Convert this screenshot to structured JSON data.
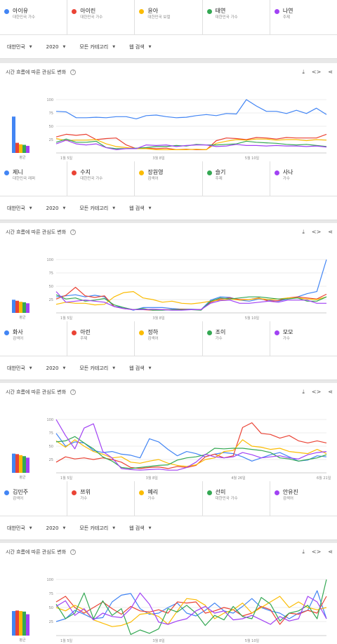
{
  "filters": {
    "region": "대한민국",
    "year": "2020",
    "category": "모든 카테고리",
    "search_type": "웹 검색"
  },
  "card_title": "시간 흐름에 따른 관심도 변화",
  "avg_label": "평균",
  "colors": [
    "#4285f4",
    "#ea4335",
    "#fbbc04",
    "#34a853",
    "#a142f4"
  ],
  "sections": [
    {
      "terms": [
        {
          "name": "아이유",
          "sub": "대한민국 가수"
        },
        {
          "name": "아이린",
          "sub": "대한민국 가수"
        },
        {
          "name": "윤아",
          "sub": "대한민국 보컬"
        },
        {
          "name": "태연",
          "sub": "대한민국 가수"
        },
        {
          "name": "나연",
          "sub": "주제"
        }
      ]
    },
    {
      "terms": [
        {
          "name": "제니",
          "sub": "대한민국 래퍼"
        },
        {
          "name": "수지",
          "sub": "대한민국 가수"
        },
        {
          "name": "장원영",
          "sub": "검색어"
        },
        {
          "name": "슬기",
          "sub": "주제"
        },
        {
          "name": "사나",
          "sub": "가수"
        }
      ]
    },
    {
      "terms": [
        {
          "name": "화사",
          "sub": "검색어"
        },
        {
          "name": "아린",
          "sub": "주제"
        },
        {
          "name": "정하",
          "sub": "검색어"
        },
        {
          "name": "조이",
          "sub": "가수"
        },
        {
          "name": "모모",
          "sub": "가수"
        }
      ]
    },
    {
      "terms": [
        {
          "name": "김민주",
          "sub": "검색어"
        },
        {
          "name": "쯔위",
          "sub": "가수"
        },
        {
          "name": "예리",
          "sub": "가수"
        },
        {
          "name": "선미",
          "sub": "대한민국 가수"
        },
        {
          "name": "안유진",
          "sub": "검색어"
        }
      ]
    }
  ],
  "chart_data": [
    {
      "type": "line",
      "yticks": [
        25,
        50,
        75,
        100
      ],
      "ylim": [
        0,
        100
      ],
      "xticks": [
        "1월 5일",
        "3월 8일",
        "5월 10일"
      ],
      "averages": [
        72,
        20,
        17,
        16,
        14
      ],
      "series": [
        {
          "name": "아이유",
          "values": [
            78,
            77,
            66,
            66,
            67,
            66,
            68,
            68,
            64,
            70,
            71,
            68,
            66,
            67,
            70,
            72,
            70,
            74,
            73,
            100,
            88,
            78,
            78,
            74,
            80,
            74,
            84,
            72
          ]
        },
        {
          "name": "아이린",
          "values": [
            30,
            35,
            33,
            35,
            25,
            27,
            28,
            15,
            8,
            9,
            8,
            9,
            6,
            7,
            6,
            6,
            23,
            28,
            27,
            25,
            29,
            28,
            26,
            29,
            28,
            28,
            28,
            35
          ]
        },
        {
          "name": "윤아",
          "values": [
            27,
            23,
            24,
            24,
            25,
            17,
            12,
            10,
            8,
            8,
            6,
            6,
            6,
            6,
            7,
            6,
            18,
            22,
            25,
            24,
            26,
            26,
            24,
            25,
            25,
            23,
            25,
            24
          ]
        },
        {
          "name": "태연",
          "values": [
            20,
            26,
            20,
            20,
            22,
            10,
            8,
            8,
            9,
            10,
            12,
            12,
            14,
            13,
            16,
            15,
            15,
            16,
            17,
            22,
            20,
            19,
            18,
            16,
            15,
            16,
            14,
            12
          ]
        },
        {
          "name": "나연",
          "values": [
            17,
            24,
            17,
            15,
            17,
            10,
            6,
            8,
            8,
            15,
            14,
            15,
            12,
            14,
            15,
            15,
            12,
            13,
            16,
            14,
            14,
            13,
            14,
            13,
            13,
            12,
            13,
            11
          ]
        }
      ]
    },
    {
      "type": "line",
      "yticks": [
        25,
        50,
        75,
        100
      ],
      "ylim": [
        0,
        100
      ],
      "xticks": [
        "1월 5일",
        "3월 8일",
        "5월 10일"
      ],
      "averages": [
        26,
        24,
        22,
        21,
        19
      ],
      "series": [
        {
          "name": "제니",
          "values": [
            30,
            32,
            34,
            30,
            33,
            30,
            12,
            10,
            5,
            10,
            10,
            10,
            8,
            7,
            7,
            6,
            24,
            30,
            29,
            24,
            22,
            26,
            24,
            22,
            26,
            30,
            36,
            40,
            100
          ]
        },
        {
          "name": "수지",
          "values": [
            26,
            33,
            48,
            32,
            29,
            32,
            12,
            8,
            6,
            6,
            5,
            6,
            6,
            7,
            6,
            6,
            20,
            26,
            28,
            25,
            25,
            28,
            22,
            23,
            28,
            30,
            28,
            26,
            35
          ]
        },
        {
          "name": "장원영",
          "values": [
            16,
            20,
            18,
            18,
            15,
            16,
            30,
            38,
            40,
            28,
            25,
            20,
            22,
            18,
            17,
            19,
            22,
            24,
            26,
            24,
            25,
            27,
            25,
            26,
            28,
            28,
            26,
            25,
            30
          ]
        },
        {
          "name": "슬기",
          "values": [
            34,
            26,
            28,
            22,
            24,
            27,
            15,
            10,
            6,
            8,
            5,
            5,
            6,
            6,
            6,
            5,
            22,
            28,
            26,
            28,
            30,
            30,
            28,
            26,
            26,
            28,
            22,
            22,
            30
          ]
        },
        {
          "name": "사나",
          "values": [
            40,
            20,
            22,
            24,
            22,
            20,
            12,
            8,
            6,
            6,
            7,
            6,
            5,
            5,
            6,
            6,
            18,
            23,
            24,
            18,
            18,
            20,
            22,
            20,
            24,
            24,
            24,
            18,
            18
          ]
        }
      ]
    },
    {
      "type": "line",
      "yticks": [
        25,
        50,
        75,
        100
      ],
      "ylim": [
        0,
        100
      ],
      "xticks": [
        "1월 5일",
        "3월 8일",
        "4월 26일",
        "6월 21일"
      ],
      "averages": [
        38,
        37,
        35,
        33,
        30
      ],
      "series": [
        {
          "name": "화사",
          "values": [
            74,
            50,
            58,
            56,
            42,
            38,
            40,
            35,
            33,
            28,
            64,
            58,
            44,
            32,
            40,
            36,
            30,
            35,
            38,
            36,
            30,
            22,
            28,
            34,
            38,
            30,
            22,
            24,
            32,
            30
          ]
        },
        {
          "name": "아린",
          "values": [
            20,
            30,
            26,
            28,
            25,
            28,
            25,
            20,
            10,
            8,
            10,
            11,
            8,
            12,
            10,
            14,
            30,
            35,
            28,
            32,
            85,
            94,
            74,
            72,
            65,
            70,
            60,
            56,
            60,
            56
          ]
        },
        {
          "name": "정하",
          "values": [
            60,
            48,
            62,
            50,
            40,
            35,
            28,
            30,
            20,
            18,
            22,
            25,
            18,
            14,
            12,
            15,
            25,
            28,
            40,
            42,
            62,
            50,
            48,
            44,
            46,
            40,
            38,
            36,
            44,
            36
          ]
        },
        {
          "name": "조이",
          "values": [
            58,
            60,
            68,
            56,
            45,
            30,
            22,
            10,
            8,
            10,
            12,
            14,
            15,
            24,
            28,
            30,
            34,
            46,
            45,
            46,
            46,
            44,
            42,
            38,
            28,
            26,
            22,
            25,
            28,
            34
          ]
        },
        {
          "name": "모모",
          "values": [
            100,
            70,
            45,
            84,
            92,
            40,
            28,
            8,
            6,
            5,
            6,
            7,
            5,
            5,
            10,
            20,
            35,
            30,
            28,
            30,
            38,
            34,
            28,
            30,
            32,
            28,
            26,
            34,
            38,
            40
          ]
        }
      ]
    },
    {
      "type": "line",
      "yticks": [
        25,
        50,
        75,
        100
      ],
      "ylim": [
        0,
        100
      ],
      "xticks": [
        "1월 5일",
        "3월 8일",
        "5월 10일"
      ],
      "averages": [
        46,
        47,
        46,
        45,
        40
      ],
      "series": [
        {
          "name": "김민주",
          "values": [
            25,
            30,
            45,
            38,
            30,
            32,
            60,
            72,
            75,
            48,
            38,
            40,
            50,
            58,
            40,
            35,
            45,
            58,
            44,
            40,
            52,
            66,
            50,
            44,
            40,
            30,
            40,
            45,
            80,
            30
          ]
        },
        {
          "name": "쯔위",
          "values": [
            60,
            70,
            50,
            40,
            50,
            60,
            48,
            38,
            52,
            44,
            42,
            46,
            40,
            60,
            58,
            60,
            40,
            44,
            50,
            46,
            35,
            40,
            52,
            46,
            20,
            40,
            38,
            45,
            40,
            70
          ]
        },
        {
          "name": "예리",
          "values": [
            50,
            44,
            54,
            46,
            28,
            22,
            16,
            18,
            24,
            38,
            40,
            34,
            20,
            44,
            66,
            64,
            54,
            30,
            40,
            46,
            58,
            40,
            50,
            60,
            70,
            50,
            60,
            50,
            46,
            50
          ]
        },
        {
          "name": "선미",
          "values": [
            56,
            30,
            40,
            76,
            30,
            62,
            36,
            48,
            2,
            10,
            4,
            12,
            48,
            42,
            54,
            40,
            18,
            36,
            28,
            52,
            34,
            30,
            68,
            56,
            26,
            40,
            44,
            54,
            30,
            100
          ]
        },
        {
          "name": "안유진",
          "values": [
            52,
            62,
            36,
            48,
            28,
            40,
            34,
            32,
            48,
            76,
            56,
            24,
            20,
            26,
            30,
            44,
            52,
            40,
            44,
            28,
            30,
            36,
            28,
            20,
            34,
            26,
            30,
            70,
            60,
            30
          ]
        }
      ]
    }
  ]
}
